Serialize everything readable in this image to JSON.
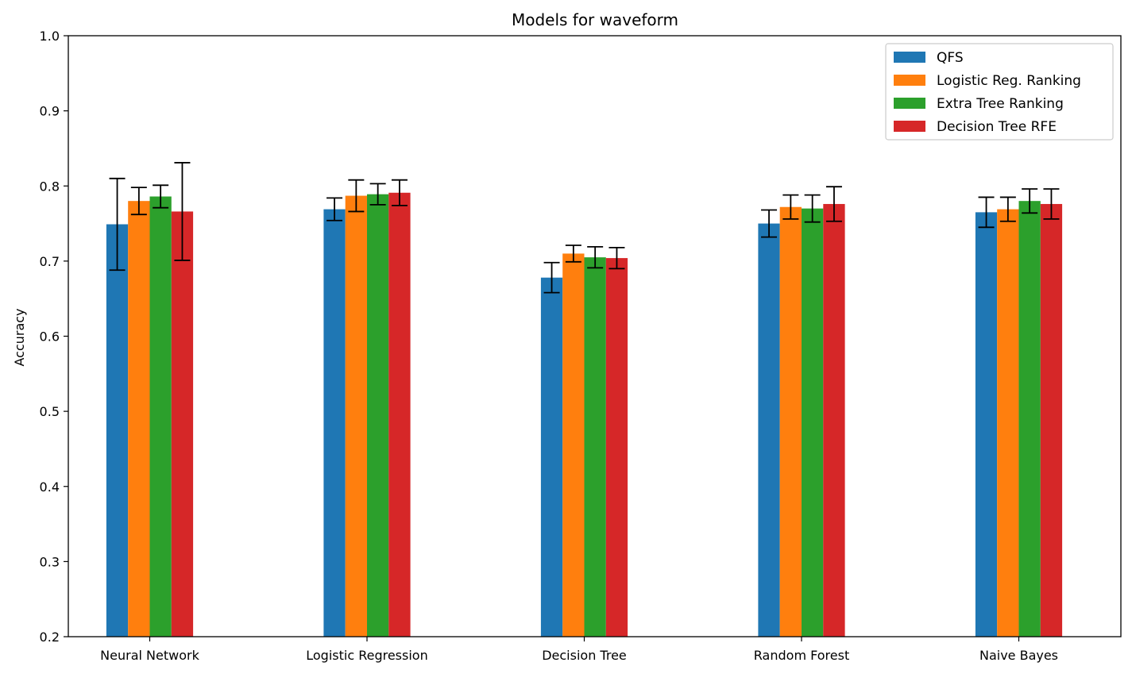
{
  "chart_data": {
    "type": "bar",
    "title": "Models for waveform",
    "xlabel": "",
    "ylabel": "Accuracy",
    "ylim": [
      0.2,
      1.0
    ],
    "yticks": [
      "0.2",
      "0.3",
      "0.4",
      "0.5",
      "0.6",
      "0.7",
      "0.8",
      "0.9",
      "1.0"
    ],
    "categories": [
      "Neural Network",
      "Logistic Regression",
      "Decision Tree",
      "Random Forest",
      "Naive Bayes"
    ],
    "legend_position": "top-right",
    "grid": false,
    "series": [
      {
        "name": "QFS",
        "color": "#1f77b4",
        "values": [
          0.749,
          0.769,
          0.678,
          0.75,
          0.765
        ],
        "errors": [
          0.061,
          0.015,
          0.02,
          0.018,
          0.02
        ]
      },
      {
        "name": "Logistic Reg. Ranking",
        "color": "#ff7f0e",
        "values": [
          0.78,
          0.787,
          0.71,
          0.772,
          0.769
        ],
        "errors": [
          0.018,
          0.021,
          0.011,
          0.016,
          0.016
        ]
      },
      {
        "name": "Extra Tree Ranking",
        "color": "#2ca02c",
        "values": [
          0.786,
          0.789,
          0.705,
          0.77,
          0.78
        ],
        "errors": [
          0.015,
          0.014,
          0.014,
          0.018,
          0.016
        ]
      },
      {
        "name": "Decision Tree RFE",
        "color": "#d62728",
        "values": [
          0.766,
          0.791,
          0.704,
          0.776,
          0.776
        ],
        "errors": [
          0.065,
          0.017,
          0.014,
          0.023,
          0.02
        ]
      }
    ]
  }
}
